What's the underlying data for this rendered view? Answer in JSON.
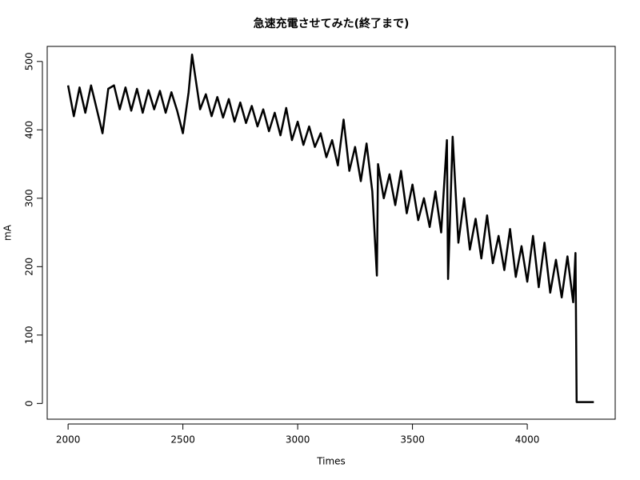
{
  "chart_data": {
    "type": "line",
    "title": "急速充電させてみた(終了まで)",
    "x_label": "Times",
    "y_label": "mA",
    "color": "#000000",
    "x": [
      2000,
      2025,
      2050,
      2075,
      2100,
      2125,
      2150,
      2175,
      2200,
      2225,
      2250,
      2275,
      2300,
      2325,
      2350,
      2375,
      2400,
      2425,
      2450,
      2475,
      2500,
      2525,
      2540,
      2575,
      2600,
      2625,
      2650,
      2675,
      2700,
      2725,
      2750,
      2775,
      2800,
      2825,
      2850,
      2875,
      2900,
      2925,
      2950,
      2975,
      3000,
      3025,
      3050,
      3075,
      3100,
      3125,
      3150,
      3175,
      3200,
      3225,
      3250,
      3275,
      3300,
      3325,
      3345,
      3350,
      3375,
      3400,
      3425,
      3450,
      3475,
      3500,
      3525,
      3550,
      3575,
      3600,
      3625,
      3650,
      3655,
      3675,
      3700,
      3725,
      3750,
      3775,
      3800,
      3825,
      3850,
      3875,
      3900,
      3925,
      3950,
      3975,
      4000,
      4025,
      4050,
      4075,
      4100,
      4125,
      4150,
      4175,
      4200,
      4210,
      4212,
      4215,
      4290
    ],
    "values": [
      465,
      420,
      462,
      425,
      465,
      430,
      395,
      460,
      465,
      430,
      462,
      428,
      460,
      425,
      458,
      430,
      457,
      425,
      455,
      428,
      395,
      455,
      510,
      430,
      452,
      420,
      448,
      418,
      445,
      412,
      440,
      410,
      435,
      405,
      430,
      398,
      425,
      392,
      432,
      385,
      412,
      378,
      405,
      375,
      395,
      360,
      385,
      348,
      415,
      340,
      375,
      325,
      380,
      310,
      187,
      350,
      300,
      335,
      290,
      340,
      278,
      320,
      268,
      300,
      258,
      310,
      250,
      385,
      182,
      390,
      235,
      300,
      225,
      270,
      212,
      275,
      205,
      245,
      195,
      255,
      185,
      230,
      178,
      245,
      170,
      235,
      162,
      210,
      155,
      215,
      148,
      220,
      138,
      2,
      2
    ],
    "xlim": [
      1909,
      4383
    ],
    "ylim": [
      -23,
      522
    ],
    "xticks": [
      2000,
      2500,
      3000,
      3500,
      4000
    ],
    "yticks": [
      0,
      100,
      200,
      300,
      400,
      500
    ]
  }
}
